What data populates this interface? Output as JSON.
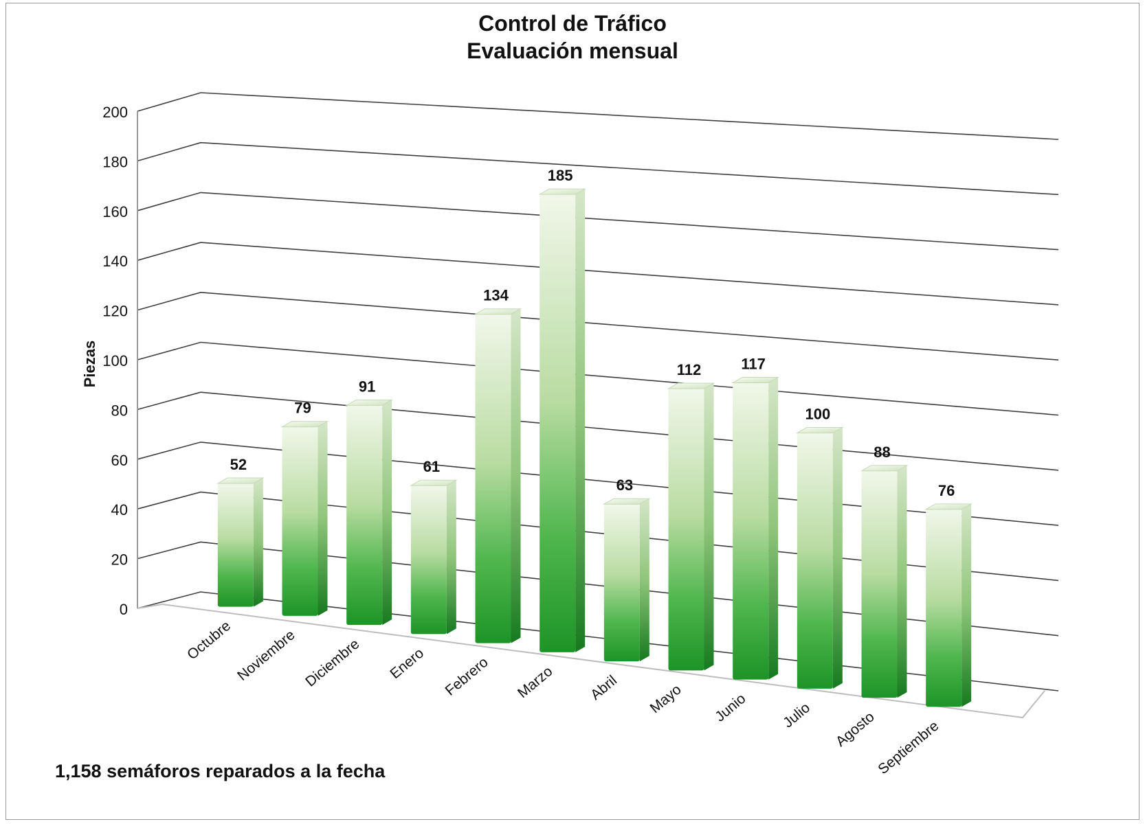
{
  "chart_data": {
    "type": "bar",
    "title": "Control de Tráfico",
    "subtitle": "Evaluación mensual",
    "ylabel": "Piezas",
    "xlabel": "",
    "ylim": [
      0,
      200
    ],
    "yticks": [
      "0",
      "20",
      "40",
      "60",
      "80",
      "100",
      "120",
      "140",
      "160",
      "180",
      "200"
    ],
    "categories": [
      "Octubre",
      "Noviembre",
      "Diciembre",
      "Enero",
      "Febrero",
      "Marzo",
      "Abril",
      "Mayo",
      "Junio",
      "Julio",
      "Agosto",
      "Septiembre"
    ],
    "values": [
      52,
      79,
      91,
      61,
      134,
      185,
      63,
      112,
      117,
      100,
      88,
      76
    ],
    "data_labels": [
      "52",
      "79",
      "91",
      "61",
      "134",
      "185",
      "63",
      "112",
      "117",
      "100",
      "88",
      "76"
    ],
    "grid": true,
    "style": "3d-column",
    "colors": {
      "bar_top": "#eef6e6",
      "bar_bottom": "#1f9a2a",
      "gridline": "#444444"
    }
  },
  "footnote": "1,158 semáforos reparados a la fecha"
}
